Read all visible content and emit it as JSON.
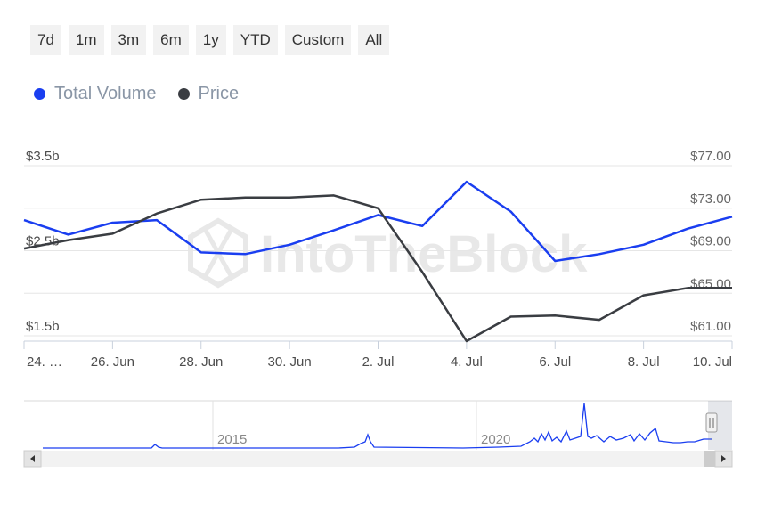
{
  "range_buttons": [
    "7d",
    "1m",
    "3m",
    "6m",
    "1y",
    "YTD",
    "Custom",
    "All"
  ],
  "legend": [
    {
      "label": "Total Volume",
      "color": "#1a3ef0"
    },
    {
      "label": "Price",
      "color": "#3a3d42"
    }
  ],
  "watermark": "IntoTheBlock",
  "navigator": {
    "labels": [
      "2015",
      "2020"
    ]
  },
  "chart_data": {
    "type": "line",
    "x": [
      "24 Jun",
      "25 Jun",
      "26 Jun",
      "27 Jun",
      "28 Jun",
      "29 Jun",
      "30 Jun",
      "1 Jul",
      "2 Jul",
      "3 Jul",
      "4 Jul",
      "5 Jul",
      "6 Jul",
      "7 Jul",
      "8 Jul",
      "9 Jul",
      "10 Jul"
    ],
    "x_tick_labels": [
      "24. …",
      "26. Jun",
      "28. Jun",
      "30. Jun",
      "2. Jul",
      "4. Jul",
      "6. Jul",
      "8. Jul",
      "10. Jul"
    ],
    "series": [
      {
        "name": "Total Volume",
        "axis": "left",
        "color": "#1a3ef0",
        "values": [
          2.86,
          2.69,
          2.83,
          2.86,
          2.48,
          2.46,
          2.57,
          2.74,
          2.92,
          2.79,
          3.31,
          2.96,
          2.38,
          2.46,
          2.57,
          2.76,
          2.9
        ]
      },
      {
        "name": "Price",
        "axis": "right",
        "color": "#3a3d42",
        "values": [
          69.2,
          70.0,
          70.6,
          72.5,
          73.8,
          74.0,
          74.0,
          74.2,
          73.0,
          67.0,
          60.5,
          62.8,
          62.9,
          62.5,
          64.8,
          65.5,
          65.5
        ]
      }
    ],
    "y_left": {
      "ticks": [
        "$3.5b",
        "$2.5b",
        "$1.5b"
      ],
      "tick_values": [
        3.5,
        2.5,
        1.5
      ],
      "range": [
        1.5,
        3.5
      ]
    },
    "y_right": {
      "ticks": [
        "$77.00",
        "$73.00",
        "$69.00",
        "$65.00",
        "$61.00"
      ],
      "tick_values": [
        77,
        73,
        69,
        65,
        61
      ],
      "range": [
        61,
        77
      ]
    },
    "grid": true,
    "legend_position": "top-left"
  }
}
